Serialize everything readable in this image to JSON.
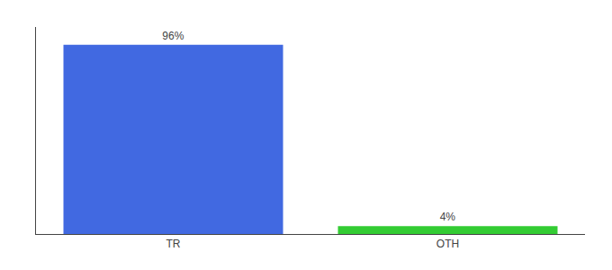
{
  "chart_data": {
    "type": "bar",
    "categories": [
      "TR",
      "OTH"
    ],
    "values": [
      96,
      4
    ],
    "value_labels": [
      "96%",
      "4%"
    ],
    "colors": [
      "#4169e1",
      "#33cc33"
    ],
    "ylim": [
      0,
      105
    ],
    "data_labels": true,
    "tick_labels": "x",
    "grid": false
  }
}
